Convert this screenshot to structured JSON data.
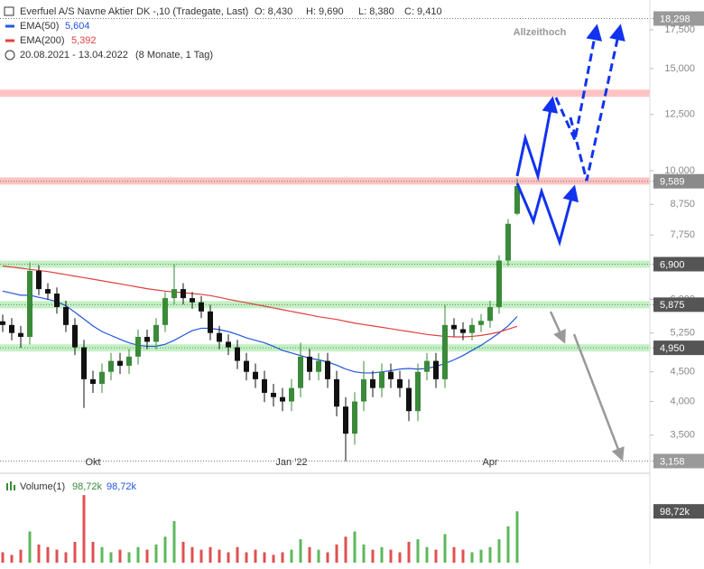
{
  "chart_data": {
    "type": "candlestick",
    "title": "Everfuel A/S Navne Aktier DK -,10 (Tradegate, Last)",
    "ohlc_labels": [
      "O: 8,430",
      "H: 9,690",
      "L: 8,380",
      "C: 9,410"
    ],
    "period": "20.08.2021 - 13.04.2022",
    "period_note": "(8 Monate, 1 Tag)",
    "annotation": "Allzeithoch",
    "log_scale": true,
    "up_color": "#3a8a3a",
    "down_color": "#111111",
    "categories": [
      null,
      null,
      null,
      null,
      null,
      null,
      null,
      null,
      null,
      null,
      "Okt",
      null,
      null,
      null,
      null,
      null,
      null,
      null,
      null,
      null,
      null,
      null,
      null,
      null,
      null,
      null,
      null,
      null,
      null,
      null,
      null,
      null,
      "Jan '22",
      null,
      null,
      null,
      null,
      null,
      null,
      null,
      null,
      null,
      null,
      null,
      null,
      null,
      null,
      null,
      null,
      null,
      null,
      null,
      null,
      null,
      "Apr",
      null,
      null,
      null
    ],
    "open": [
      5.5,
      5.42,
      5.25,
      5.17,
      6.72,
      6.25,
      6.14,
      5.82,
      5.42,
      4.96,
      4.37,
      4.29,
      4.5,
      4.7,
      4.61,
      4.78,
      5.17,
      5.07,
      5.42,
      6.03,
      6.25,
      6.03,
      5.93,
      5.72,
      5.25,
      5.07,
      4.96,
      4.7,
      4.5,
      4.37,
      4.14,
      4.07,
      4.0,
      4.22,
      4.78,
      4.5,
      4.7,
      4.37,
      3.92,
      3.52,
      4.0,
      4.37,
      4.22,
      4.5,
      4.37,
      4.22,
      3.85,
      4.5,
      4.7,
      4.37,
      5.42,
      5.33,
      5.25,
      5.42,
      5.51,
      5.82,
      7.0,
      8.43
    ],
    "high": [
      5.65,
      5.57,
      5.4,
      6.95,
      6.87,
      6.4,
      6.29,
      5.97,
      5.57,
      5.11,
      4.52,
      4.65,
      4.85,
      4.85,
      4.93,
      5.32,
      5.32,
      5.57,
      6.18,
      6.9,
      6.4,
      6.18,
      6.08,
      5.87,
      5.4,
      5.22,
      5.11,
      4.85,
      4.65,
      4.52,
      4.29,
      4.22,
      4.37,
      5.05,
      4.93,
      4.85,
      4.85,
      4.52,
      4.07,
      4.15,
      4.7,
      4.52,
      4.65,
      4.65,
      4.52,
      4.37,
      4.65,
      4.85,
      4.85,
      5.875,
      5.57,
      5.48,
      5.57,
      5.66,
      5.97,
      7.15,
      8.25,
      9.69
    ],
    "low": [
      5.27,
      5.1,
      4.95,
      5.02,
      6.1,
      5.99,
      5.67,
      5.27,
      4.81,
      3.9,
      4.14,
      4.14,
      4.35,
      4.46,
      4.46,
      4.63,
      4.92,
      4.92,
      5.27,
      5.88,
      5.88,
      5.78,
      5.57,
      5.1,
      4.92,
      4.81,
      4.55,
      4.35,
      4.22,
      3.99,
      3.92,
      3.85,
      3.85,
      4.07,
      4.35,
      4.35,
      4.22,
      3.77,
      3.158,
      3.37,
      3.85,
      4.07,
      4.07,
      4.22,
      4.07,
      3.7,
      3.7,
      4.35,
      4.22,
      4.22,
      5.18,
      5.1,
      5.1,
      5.27,
      5.36,
      5.67,
      6.85,
      8.38
    ],
    "close": [
      5.42,
      5.25,
      5.17,
      6.72,
      6.25,
      6.14,
      5.82,
      5.42,
      4.96,
      4.37,
      4.29,
      4.5,
      4.7,
      4.61,
      4.78,
      5.17,
      5.07,
      5.42,
      6.03,
      6.25,
      6.03,
      5.93,
      5.72,
      5.25,
      5.07,
      4.96,
      4.7,
      4.5,
      4.37,
      4.14,
      4.07,
      4.0,
      4.22,
      4.78,
      4.5,
      4.7,
      4.37,
      3.92,
      3.52,
      4.0,
      4.37,
      4.22,
      4.5,
      4.37,
      4.22,
      3.85,
      4.5,
      4.7,
      4.37,
      5.42,
      5.33,
      5.25,
      5.42,
      5.51,
      5.82,
      7.0,
      8.1,
      9.41
    ],
    "series": [
      {
        "name": "EMA(50)",
        "color": "#2255dd",
        "last_label": "5,604",
        "values": [
          6.2,
          6.15,
          6.1,
          6.1,
          6.05,
          6.0,
          5.95,
          5.85,
          5.7,
          5.55,
          5.4,
          5.28,
          5.2,
          5.12,
          5.05,
          5.0,
          4.98,
          4.98,
          5.02,
          5.1,
          5.2,
          5.3,
          5.35,
          5.35,
          5.32,
          5.28,
          5.22,
          5.15,
          5.1,
          5.05,
          4.98,
          4.9,
          4.85,
          4.8,
          4.75,
          4.72,
          4.68,
          4.62,
          4.55,
          4.5,
          4.48,
          4.48,
          4.5,
          4.52,
          4.55,
          4.56,
          4.55,
          4.56,
          4.6,
          4.65,
          4.72,
          4.8,
          4.9,
          5.0,
          5.12,
          5.25,
          5.4,
          5.604
        ]
      },
      {
        "name": "EMA(200)",
        "color": "#e04040",
        "last_label": "5,392",
        "values": [
          6.85,
          6.82,
          6.79,
          6.76,
          6.73,
          6.7,
          6.66,
          6.62,
          6.58,
          6.54,
          6.5,
          6.46,
          6.42,
          6.38,
          6.34,
          6.3,
          6.26,
          6.23,
          6.2,
          6.18,
          6.16,
          6.14,
          6.12,
          6.09,
          6.05,
          6.0,
          5.96,
          5.92,
          5.88,
          5.84,
          5.8,
          5.76,
          5.72,
          5.68,
          5.64,
          5.6,
          5.57,
          5.54,
          5.5,
          5.46,
          5.43,
          5.4,
          5.37,
          5.34,
          5.31,
          5.28,
          5.25,
          5.22,
          5.2,
          5.18,
          5.17,
          5.17,
          5.18,
          5.2,
          5.23,
          5.27,
          5.33,
          5.392
        ]
      }
    ],
    "ylim": [
      3.03,
      19.0
    ],
    "yticks": [
      {
        "value": 3.5,
        "label": "3,500"
      },
      {
        "value": 4,
        "label": "4,000"
      },
      {
        "value": 4.5,
        "label": "4,500"
      },
      {
        "value": 5.25,
        "label": "5,250"
      },
      {
        "value": 6,
        "label": "6,000"
      },
      {
        "value": 7.75,
        "label": "7,750"
      },
      {
        "value": 8.75,
        "label": "8,750"
      },
      {
        "value": 10,
        "label": "10,000"
      },
      {
        "value": 12.5,
        "label": "12,500"
      },
      {
        "value": 15,
        "label": "15,000"
      },
      {
        "value": 17.5,
        "label": "17,500"
      }
    ],
    "zones": [
      {
        "value": 13.6,
        "color": "#ffb8b8"
      },
      {
        "value": 9.6,
        "color": "#ffb8b8"
      },
      {
        "value": 6.9,
        "color": "#b8efb8"
      },
      {
        "value": 5.875,
        "color": "#b8efb8"
      },
      {
        "value": 4.95,
        "color": "#b8efb8"
      }
    ],
    "levels": [
      {
        "value": 18.298,
        "label": "18,298",
        "color": "#9a9a9a"
      },
      {
        "value": 9.589,
        "label": "9,589",
        "color": "#8a8a8a"
      },
      {
        "value": 6.9,
        "label": "6,900",
        "color": "#555555"
      },
      {
        "value": 5.875,
        "label": "5,875",
        "color": "#555555"
      },
      {
        "value": 4.95,
        "label": "4,950",
        "color": "#555555"
      },
      {
        "value": 3.158,
        "label": "3,158",
        "color": "#9a9a9a"
      }
    ],
    "volume": {
      "name": "Volume(1)",
      "last_label": "98,72k",
      "avg_label": "98,72k",
      "box_label": "98,72k",
      "ylim": [
        0,
        165000
      ],
      "values": [
        20000,
        15000,
        25000,
        60000,
        35000,
        30000,
        25000,
        20000,
        40000,
        130000,
        40000,
        30000,
        20000,
        25000,
        20000,
        30000,
        25000,
        35000,
        50000,
        80000,
        40000,
        30000,
        25000,
        30000,
        25000,
        20000,
        30000,
        20000,
        25000,
        20000,
        15000,
        20000,
        25000,
        45000,
        30000,
        25000,
        20000,
        35000,
        50000,
        60000,
        35000,
        25000,
        30000,
        25000,
        20000,
        40000,
        45000,
        30000,
        25000,
        55000,
        30000,
        25000,
        20000,
        25000,
        30000,
        45000,
        70000,
        98720
      ]
    }
  }
}
